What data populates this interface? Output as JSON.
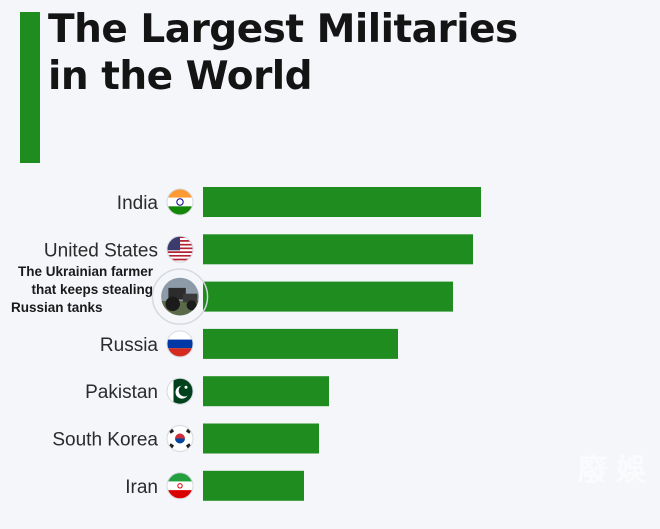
{
  "title_lines": [
    "The Largest Militaries",
    "in the World"
  ],
  "colors": {
    "accent": "#1f8c1f",
    "bar": "#1f8c1f"
  },
  "chart_data": {
    "type": "bar",
    "orientation": "horizontal",
    "title": "The Largest Militaries in the World",
    "categories": [
      "India",
      "United States",
      "The Ukrainian farmer that keeps stealing Russian tanks",
      "Russia",
      "Pakistan",
      "South Korea",
      "Iran"
    ],
    "category_icons": [
      "india-flag-icon",
      "usa-flag-icon",
      "tractor-photo-icon",
      "russia-flag-icon",
      "pakistan-flag-icon",
      "south-korea-flag-icon",
      "iran-flag-icon"
    ],
    "values": [
      278,
      270,
      250,
      195,
      126,
      116,
      101
    ],
    "xlim": [
      0,
      300
    ],
    "xlabel": "",
    "ylabel": "",
    "grid": false,
    "legend": "none"
  },
  "watermark": "廢 娛"
}
